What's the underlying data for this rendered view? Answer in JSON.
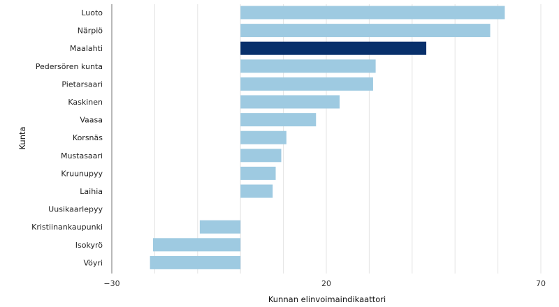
{
  "chart_data": {
    "type": "bar",
    "orientation": "horizontal",
    "categories": [
      "Luoto",
      "Närpiö",
      "Maalahti",
      "Pedersören kunta",
      "Pietarsaari",
      "Kaskinen",
      "Vaasa",
      "Korsnäs",
      "Mustasaari",
      "Kruunupyy",
      "Laihia",
      "Uusikaarlepyy",
      "Kristiinankaupunki",
      "Isokyrö",
      "Vöyri"
    ],
    "values": [
      61.6,
      58.2,
      43.3,
      31.5,
      30.9,
      23.1,
      17.6,
      10.7,
      9.5,
      8.2,
      7.5,
      0,
      -9.5,
      -20.4,
      -21.1
    ],
    "highlight": "Maalahti",
    "colors": {
      "default": "#9ecae1",
      "highlight": "#08306b",
      "grid": "#e3e3e3",
      "axis": "#888888"
    },
    "xlabel": "Kunnan elinvoimaindikaattori",
    "ylabel": "Kunta",
    "xlim": [
      -30,
      70
    ],
    "xticks": [
      -30,
      -20,
      -10,
      0,
      10,
      20,
      30,
      40,
      50,
      60,
      70
    ],
    "xtick_labels_shown": [
      "−30",
      "20",
      "70"
    ],
    "grid": true
  }
}
